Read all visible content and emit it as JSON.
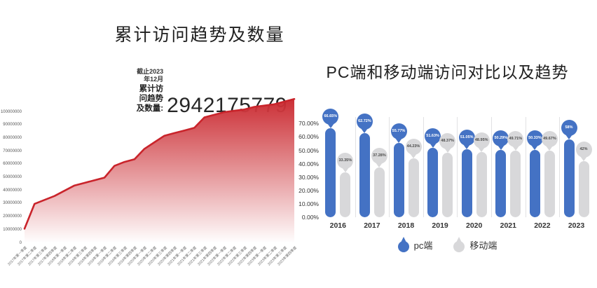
{
  "colors": {
    "area_red": "#c9242b",
    "pc_blue": "#4472c4",
    "mobile_gray": "#d8d8da",
    "balloon_gray_text": "#4a4a4a"
  },
  "chart_data": [
    {
      "type": "area",
      "title": "累计访问趋势及数量",
      "as_of": "截止2023年12月",
      "stat_label": "累计访问趋势及数量:",
      "stat_value": "2942175779",
      "line_color": "#c9242b",
      "fill": "vertical gradient red to white",
      "grid": false,
      "ylim": [
        0,
        110000000
      ],
      "yticks": [
        100000000,
        90000000,
        80000000,
        70000000,
        60000000,
        50000000,
        40000000,
        30000000,
        20000000,
        10000000,
        0
      ],
      "x": [
        "2017年第一季度",
        "2017年第二季度",
        "2017年第三季度",
        "2017年第四季度",
        "2018年第一季度",
        "2018年第二季度",
        "2018年第三季度",
        "2018年第四季度",
        "2019年第一季度",
        "2019年第二季度",
        "2019年第三季度",
        "2019年第四季度",
        "2020年第一季度",
        "2020年第二季度",
        "2020年第三季度",
        "2020年第四季度",
        "2021年第一季度",
        "2021年第二季度",
        "2021年第三季度",
        "2021年第四季度",
        "2022年第一季度",
        "2022年第二季度",
        "2022年第三季度",
        "2022年第四季度",
        "2023年第一季度",
        "2023年第二季度",
        "2023年第三季度",
        "2023年第四季度"
      ],
      "values": [
        11000000,
        30000000,
        33000000,
        36000000,
        40000000,
        44000000,
        46000000,
        48000000,
        50000000,
        59000000,
        62000000,
        64000000,
        72000000,
        77000000,
        82000000,
        84000000,
        86000000,
        88000000,
        96000000,
        98000000,
        100000000,
        101000000,
        102000000,
        104000000,
        105000000,
        106000000,
        108000000,
        110000000
      ]
    },
    {
      "type": "bar",
      "title": "PC端和移动端访问对比以及趋势",
      "categories": [
        "2016",
        "2017",
        "2018",
        "2019",
        "2020",
        "2021",
        "2022",
        "2023"
      ],
      "ylim": [
        0,
        75
      ],
      "ytick_labels": [
        "0.00%",
        "10.00%",
        "20.00%",
        "30.00%",
        "40.00%",
        "50.00%",
        "60.00%",
        "70.00%"
      ],
      "ytick_values": [
        0,
        10,
        20,
        30,
        40,
        50,
        60,
        70
      ],
      "grid": false,
      "legend_position": "bottom",
      "series": [
        {
          "name": "pc端",
          "color": "#4472c4",
          "values": [
            66.65,
            62.72,
            55.77,
            51.63,
            51.05,
            50.29,
            50.33,
            58
          ],
          "labels": [
            "66.65%",
            "62.72%",
            "55.77%",
            "51.63%",
            "51.05%",
            "50.29%",
            "50.33%",
            "58%"
          ]
        },
        {
          "name": "移动端",
          "color": "#d8d8da",
          "values": [
            33.35,
            37.28,
            44.23,
            48.37,
            48.95,
            49.71,
            49.67,
            42
          ],
          "labels": [
            "33.35%",
            "37.28%",
            "44.23%",
            "48.37%",
            "48.95%",
            "49.71%",
            "49.67%",
            "42%"
          ]
        }
      ]
    }
  ]
}
